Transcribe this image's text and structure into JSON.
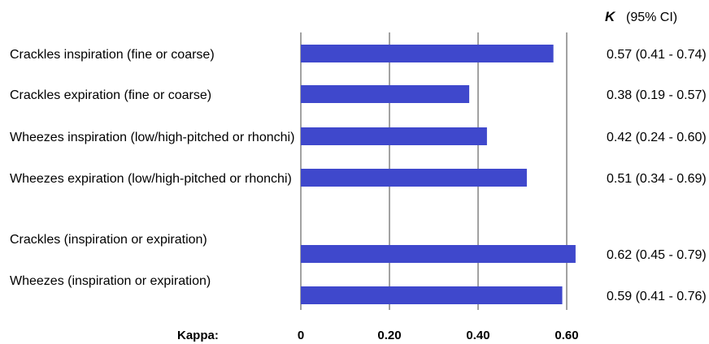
{
  "chart_data": {
    "type": "bar",
    "orientation": "horizontal",
    "xlabel": "Kappa:",
    "xlim": [
      0,
      0.6
    ],
    "xticks": [
      "0",
      "0.20",
      "0.40",
      "0.60"
    ],
    "grid": true,
    "bar_color": "#3f48cc",
    "header": {
      "k": "K",
      "ci": "(95% CI)"
    },
    "categories": [
      "Crackles inspiration (fine or coarse)",
      "Crackles expiration (fine or coarse)",
      "Wheezes inspiration (low/high-pitched or rhonchi)",
      "Wheezes expiration (low/high-pitched or rhonchi)",
      "Crackles (inspiration or expiration)",
      "Wheezes (inspiration or expiration)"
    ],
    "values": [
      0.57,
      0.38,
      0.42,
      0.51,
      0.62,
      0.59
    ],
    "value_labels": [
      "0.57  (0.41 - 0.74)",
      "0.38  (0.19 - 0.57)",
      "0.42  (0.24 - 0.60)",
      "0.51  (0.34 - 0.69)",
      "0.62  (0.45 - 0.79)",
      "0.59  (0.41 - 0.76)"
    ]
  }
}
